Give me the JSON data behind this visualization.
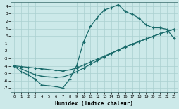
{
  "bg_color": "#cce9e9",
  "grid_color": "#aad0d0",
  "line_color": "#1a6b6b",
  "xlim": [
    -0.5,
    23.5
  ],
  "ylim": [
    -7.5,
    4.5
  ],
  "xticks": [
    0,
    1,
    2,
    3,
    4,
    5,
    6,
    7,
    8,
    9,
    10,
    11,
    12,
    13,
    14,
    15,
    16,
    17,
    18,
    19,
    20,
    21,
    22,
    23
  ],
  "yticks": [
    -7,
    -6,
    -5,
    -4,
    -3,
    -2,
    -1,
    0,
    1,
    2,
    3,
    4
  ],
  "xlabel": "Humidex (Indice chaleur)",
  "curve_main_x": [
    0,
    1,
    2,
    3,
    4,
    5,
    6,
    7,
    8,
    9,
    10,
    11,
    12,
    13,
    14,
    15,
    16,
    17,
    18,
    19,
    20,
    21,
    22,
    23
  ],
  "curve_main_y": [
    -4.0,
    -4.8,
    -5.2,
    -5.8,
    -6.6,
    -6.7,
    -6.8,
    -7.0,
    -5.8,
    -4.0,
    -0.8,
    1.3,
    2.5,
    3.5,
    3.8,
    4.2,
    3.3,
    2.9,
    2.4,
    1.5,
    1.1,
    1.1,
    0.9,
    -0.3
  ],
  "curve_diag1_x": [
    0,
    1,
    2,
    3,
    4,
    5,
    6,
    7,
    8,
    9,
    10,
    11,
    12,
    13,
    14,
    15,
    16,
    17,
    18,
    19,
    20,
    21,
    22,
    23
  ],
  "curve_diag1_y": [
    -4.0,
    -4.1,
    -4.2,
    -4.3,
    -4.4,
    -4.5,
    -4.6,
    -4.7,
    -4.55,
    -4.3,
    -3.9,
    -3.5,
    -3.1,
    -2.7,
    -2.3,
    -1.85,
    -1.45,
    -1.1,
    -0.75,
    -0.4,
    -0.05,
    0.3,
    0.6,
    0.9
  ],
  "curve_diag2_x": [
    0,
    2,
    3,
    4,
    5,
    6,
    7,
    8,
    9,
    10,
    11,
    12,
    13,
    14,
    15,
    16,
    17,
    18,
    19,
    20,
    21,
    22,
    23
  ],
  "curve_diag2_y": [
    -4.0,
    -4.8,
    -5.2,
    -5.4,
    -5.5,
    -5.55,
    -5.5,
    -5.2,
    -4.8,
    -4.3,
    -3.8,
    -3.3,
    -2.8,
    -2.35,
    -1.9,
    -1.5,
    -1.1,
    -0.75,
    -0.4,
    -0.05,
    0.3,
    0.6,
    0.9
  ]
}
